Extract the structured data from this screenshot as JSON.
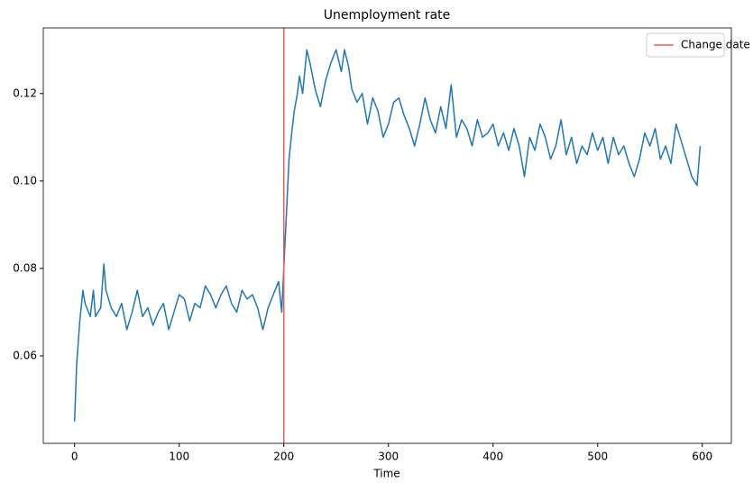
{
  "chart_data": {
    "type": "line",
    "title": "Unemployment rate",
    "x_label": "Time",
    "x": [
      0,
      2,
      5,
      8,
      10,
      15,
      18,
      20,
      25,
      28,
      30,
      35,
      40,
      45,
      50,
      55,
      60,
      65,
      70,
      75,
      80,
      85,
      90,
      95,
      100,
      105,
      110,
      115,
      120,
      125,
      130,
      135,
      140,
      145,
      150,
      155,
      160,
      165,
      170,
      175,
      180,
      185,
      190,
      195,
      198,
      200,
      203,
      205,
      208,
      210,
      213,
      215,
      218,
      220,
      222,
      225,
      230,
      235,
      240,
      245,
      250,
      255,
      258,
      262,
      265,
      270,
      275,
      280,
      285,
      290,
      295,
      300,
      305,
      310,
      315,
      320,
      325,
      330,
      335,
      340,
      345,
      350,
      355,
      360,
      365,
      370,
      375,
      380,
      385,
      390,
      395,
      400,
      405,
      410,
      415,
      420,
      425,
      430,
      435,
      440,
      445,
      450,
      455,
      460,
      465,
      470,
      475,
      480,
      485,
      490,
      495,
      500,
      505,
      510,
      515,
      520,
      525,
      530,
      535,
      540,
      545,
      550,
      555,
      560,
      565,
      570,
      575,
      580,
      585,
      590,
      595,
      598
    ],
    "series": [
      {
        "color": "#1f77b4",
        "values": [
          0.045,
          0.058,
          0.068,
          0.075,
          0.072,
          0.069,
          0.075,
          0.069,
          0.071,
          0.081,
          0.075,
          0.071,
          0.069,
          0.072,
          0.066,
          0.07,
          0.075,
          0.069,
          0.071,
          0.067,
          0.07,
          0.072,
          0.066,
          0.07,
          0.074,
          0.073,
          0.068,
          0.072,
          0.071,
          0.076,
          0.074,
          0.071,
          0.074,
          0.076,
          0.072,
          0.07,
          0.075,
          0.073,
          0.074,
          0.071,
          0.066,
          0.071,
          0.074,
          0.077,
          0.07,
          0.08,
          0.095,
          0.105,
          0.112,
          0.116,
          0.12,
          0.124,
          0.12,
          0.125,
          0.13,
          0.127,
          0.121,
          0.117,
          0.123,
          0.127,
          0.13,
          0.125,
          0.13,
          0.126,
          0.121,
          0.118,
          0.12,
          0.113,
          0.119,
          0.116,
          0.11,
          0.113,
          0.118,
          0.119,
          0.115,
          0.112,
          0.108,
          0.113,
          0.119,
          0.114,
          0.111,
          0.117,
          0.112,
          0.122,
          0.11,
          0.114,
          0.112,
          0.108,
          0.114,
          0.11,
          0.111,
          0.113,
          0.108,
          0.111,
          0.107,
          0.112,
          0.108,
          0.101,
          0.11,
          0.107,
          0.113,
          0.11,
          0.105,
          0.108,
          0.114,
          0.106,
          0.11,
          0.104,
          0.108,
          0.106,
          0.111,
          0.107,
          0.11,
          0.104,
          0.11,
          0.106,
          0.108,
          0.104,
          0.101,
          0.105,
          0.111,
          0.108,
          0.112,
          0.105,
          0.108,
          0.104,
          0.113,
          0.109,
          0.105,
          0.101,
          0.099,
          0.108
        ]
      }
    ],
    "vlines": [
      {
        "x": 200,
        "name": "Change date",
        "color": "#f05a5a"
      }
    ],
    "xlim": [
      -29.9,
      627.8
    ],
    "ylim": [
      0.04,
      0.135
    ],
    "xticks": [
      0,
      100,
      200,
      300,
      400,
      500,
      600
    ],
    "yticks": [
      0.06,
      0.08,
      {
        "value": 0.1,
        "label": "0.10"
      },
      0.12
    ],
    "legend": "upper right"
  }
}
